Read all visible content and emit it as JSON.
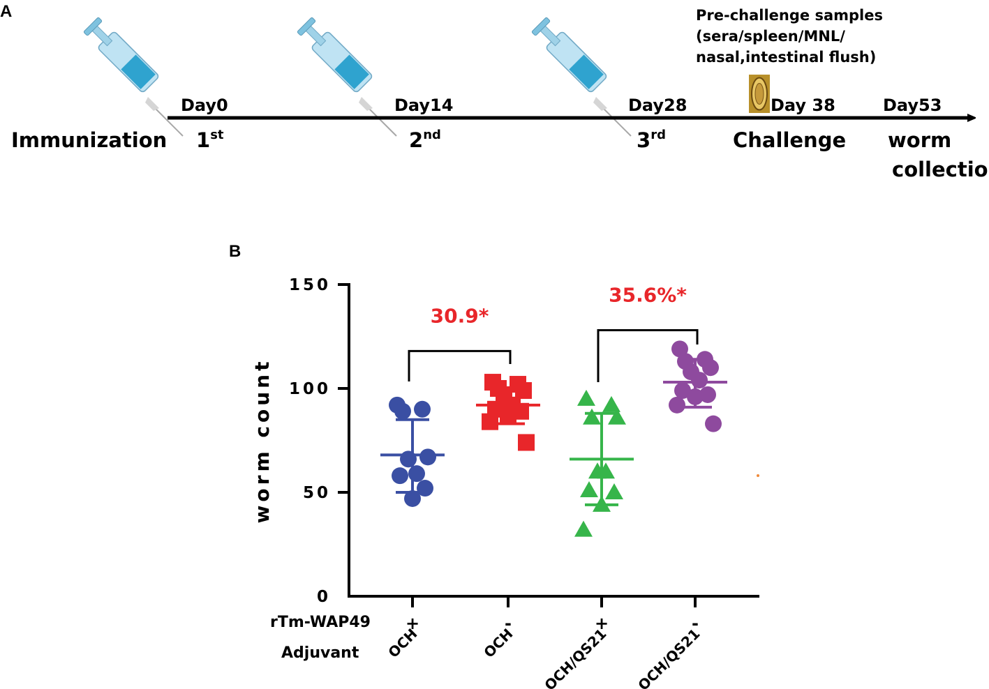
{
  "panel_a": {
    "letter": "A",
    "row_title": "Immunization",
    "samples_line1": "Pre-challenge samples",
    "samples_line2": "(sera/spleen/MNL/",
    "samples_line3": "nasal,intestinal flush)",
    "events": [
      {
        "day": "Day0",
        "dose": "1",
        "suffix": "st"
      },
      {
        "day": "Day14",
        "dose": "2",
        "suffix": "nd"
      },
      {
        "day": "Day28",
        "dose": "3",
        "suffix": "rd"
      },
      {
        "day": "Day 38",
        "label": "Challenge"
      },
      {
        "day": "Day53",
        "label_line1": "worm",
        "label_line2": "collection"
      }
    ],
    "colors": {
      "syringe_body": "#bfe3f3",
      "syringe_fluid": "#2fa3cf",
      "egg": "#b8902a"
    }
  },
  "chart_data": {
    "type": "scatter",
    "panel_letter": "B",
    "ylabel": "worm count",
    "ylim": [
      0,
      150
    ],
    "yticks": [
      0,
      50,
      100,
      150
    ],
    "ytick_labels": [
      "0",
      "50",
      "100",
      "150"
    ],
    "row_labels": {
      "antigen": "rTm-WAP49",
      "adjuvant": "Adjuvant"
    },
    "groups": [
      {
        "antigen": "+",
        "adjuvant": "OCH",
        "color": "#3a4fa3",
        "marker": "circle",
        "mean": 68,
        "sd_low": 50,
        "sd_high": 85,
        "points": [
          92,
          90,
          89,
          67,
          66,
          59,
          58,
          52,
          47
        ]
      },
      {
        "antigen": "-",
        "adjuvant": "OCH",
        "color": "#e8262a",
        "marker": "square",
        "mean": 92,
        "sd_low": 83,
        "sd_high": 99,
        "points": [
          103,
          102,
          100,
          99,
          97,
          92,
          90,
          89,
          87,
          84,
          74
        ]
      },
      {
        "antigen": "+",
        "adjuvant": "OCH/QS21",
        "color": "#36b54a",
        "marker": "triangle",
        "mean": 66,
        "sd_low": 44,
        "sd_high": 88,
        "points": [
          95,
          92,
          86,
          86,
          60,
          60,
          51,
          50,
          44,
          32
        ]
      },
      {
        "antigen": "-",
        "adjuvant": "OCH/QS21",
        "color": "#8e4a9e",
        "marker": "circle",
        "mean": 103,
        "sd_low": 91,
        "sd_high": 114,
        "points": [
          119,
          114,
          113,
          110,
          108,
          104,
          99,
          97,
          96,
          92,
          83
        ]
      }
    ],
    "annotations": [
      {
        "text": "30.9*",
        "from_group": 0,
        "to_group": 1,
        "bracket_y": 118,
        "color": "#e8262a"
      },
      {
        "text": "35.6%*",
        "from_group": 2,
        "to_group": 3,
        "bracket_y": 128,
        "color": "#e8262a"
      }
    ]
  }
}
